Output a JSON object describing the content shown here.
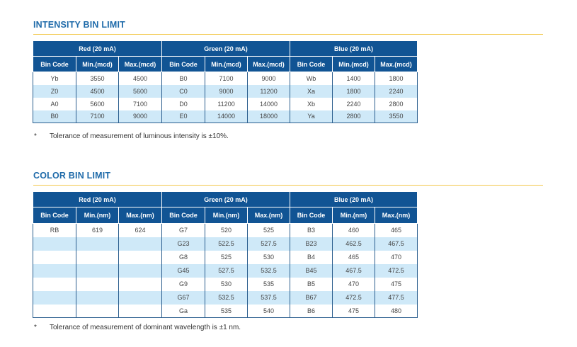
{
  "intensity": {
    "title": "INTENSITY BIN LIMIT",
    "groups": [
      "Red (20 mA)",
      "Green (20 mA)",
      "Blue (20 mA)"
    ],
    "columns": [
      "Bin Code",
      "Min.(mcd)",
      "Max.(mcd)",
      "Bin Code",
      "Min.(mcd)",
      "Max.(mcd)",
      "Bin Code",
      "Min.(mcd)",
      "Max.(mcd)"
    ],
    "rows": [
      [
        "Yb",
        "3550",
        "4500",
        "B0",
        "7100",
        "9000",
        "Wb",
        "1400",
        "1800"
      ],
      [
        "Z0",
        "4500",
        "5600",
        "C0",
        "9000",
        "11200",
        "Xa",
        "1800",
        "2240"
      ],
      [
        "A0",
        "5600",
        "7100",
        "D0",
        "11200",
        "14000",
        "Xb",
        "2240",
        "2800"
      ],
      [
        "B0",
        "7100",
        "9000",
        "E0",
        "14000",
        "18000",
        "Ya",
        "2800",
        "3550"
      ]
    ],
    "note_mark": "*",
    "note": "Tolerance of measurement of luminous intensity is ±10%."
  },
  "color": {
    "title": "COLOR BIN LIMIT",
    "groups": [
      "Red (20 mA)",
      "Green (20 mA)",
      "Blue (20 mA)"
    ],
    "columns": [
      "Bin Code",
      "Min.(nm)",
      "Max.(nm)",
      "Bin Code",
      "Min.(nm)",
      "Max.(nm)",
      "Bin Code",
      "Min.(nm)",
      "Max.(nm)"
    ],
    "rows": [
      [
        "RB",
        "619",
        "624",
        "G7",
        "520",
        "525",
        "B3",
        "460",
        "465"
      ],
      [
        "",
        "",
        "",
        "G23",
        "522.5",
        "527.5",
        "B23",
        "462.5",
        "467.5"
      ],
      [
        "",
        "",
        "",
        "G8",
        "525",
        "530",
        "B4",
        "465",
        "470"
      ],
      [
        "",
        "",
        "",
        "G45",
        "527.5",
        "532.5",
        "B45",
        "467.5",
        "472.5"
      ],
      [
        "",
        "",
        "",
        "G9",
        "530",
        "535",
        "B5",
        "470",
        "475"
      ],
      [
        "",
        "",
        "",
        "G67",
        "532.5",
        "537.5",
        "B67",
        "472.5",
        "477.5"
      ],
      [
        "",
        "",
        "",
        "Ga",
        "535",
        "540",
        "B6",
        "475",
        "480"
      ]
    ],
    "note_mark": "*",
    "note": "Tolerance of measurement of dominant wavelength is ±1 nm."
  }
}
